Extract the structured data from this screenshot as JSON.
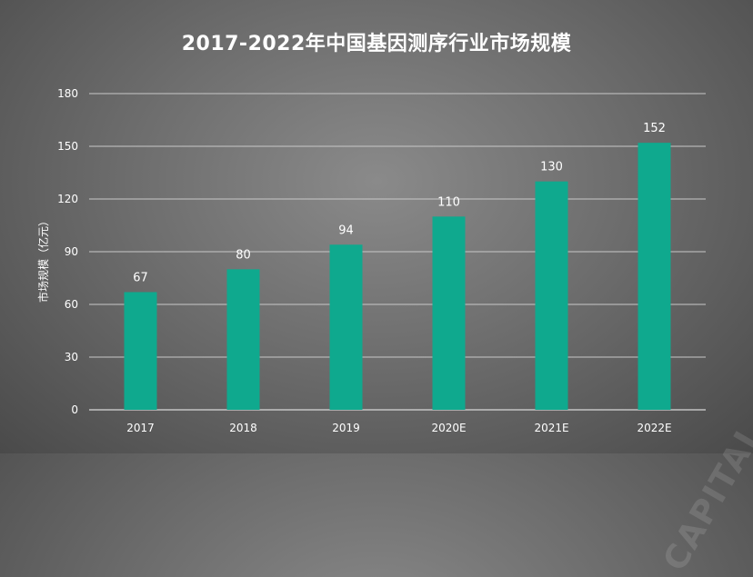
{
  "chart_data": {
    "type": "bar",
    "title": "2017-2022年中国基因测序行业市场规模",
    "ylabel": "市场规模（亿元）",
    "xlabel": "",
    "categories": [
      "2017",
      "2018",
      "2019",
      "2020E",
      "2021E",
      "2022E"
    ],
    "values": [
      67,
      80,
      94,
      110,
      130,
      152
    ],
    "data_labels": [
      "67",
      "80",
      "94",
      "110",
      "130",
      "152"
    ],
    "ylim": [
      0,
      180
    ],
    "yticks": [
      0,
      30,
      60,
      90,
      120,
      150,
      180
    ],
    "grid": true,
    "legend": "none",
    "bar_color": "#0fa98e"
  }
}
